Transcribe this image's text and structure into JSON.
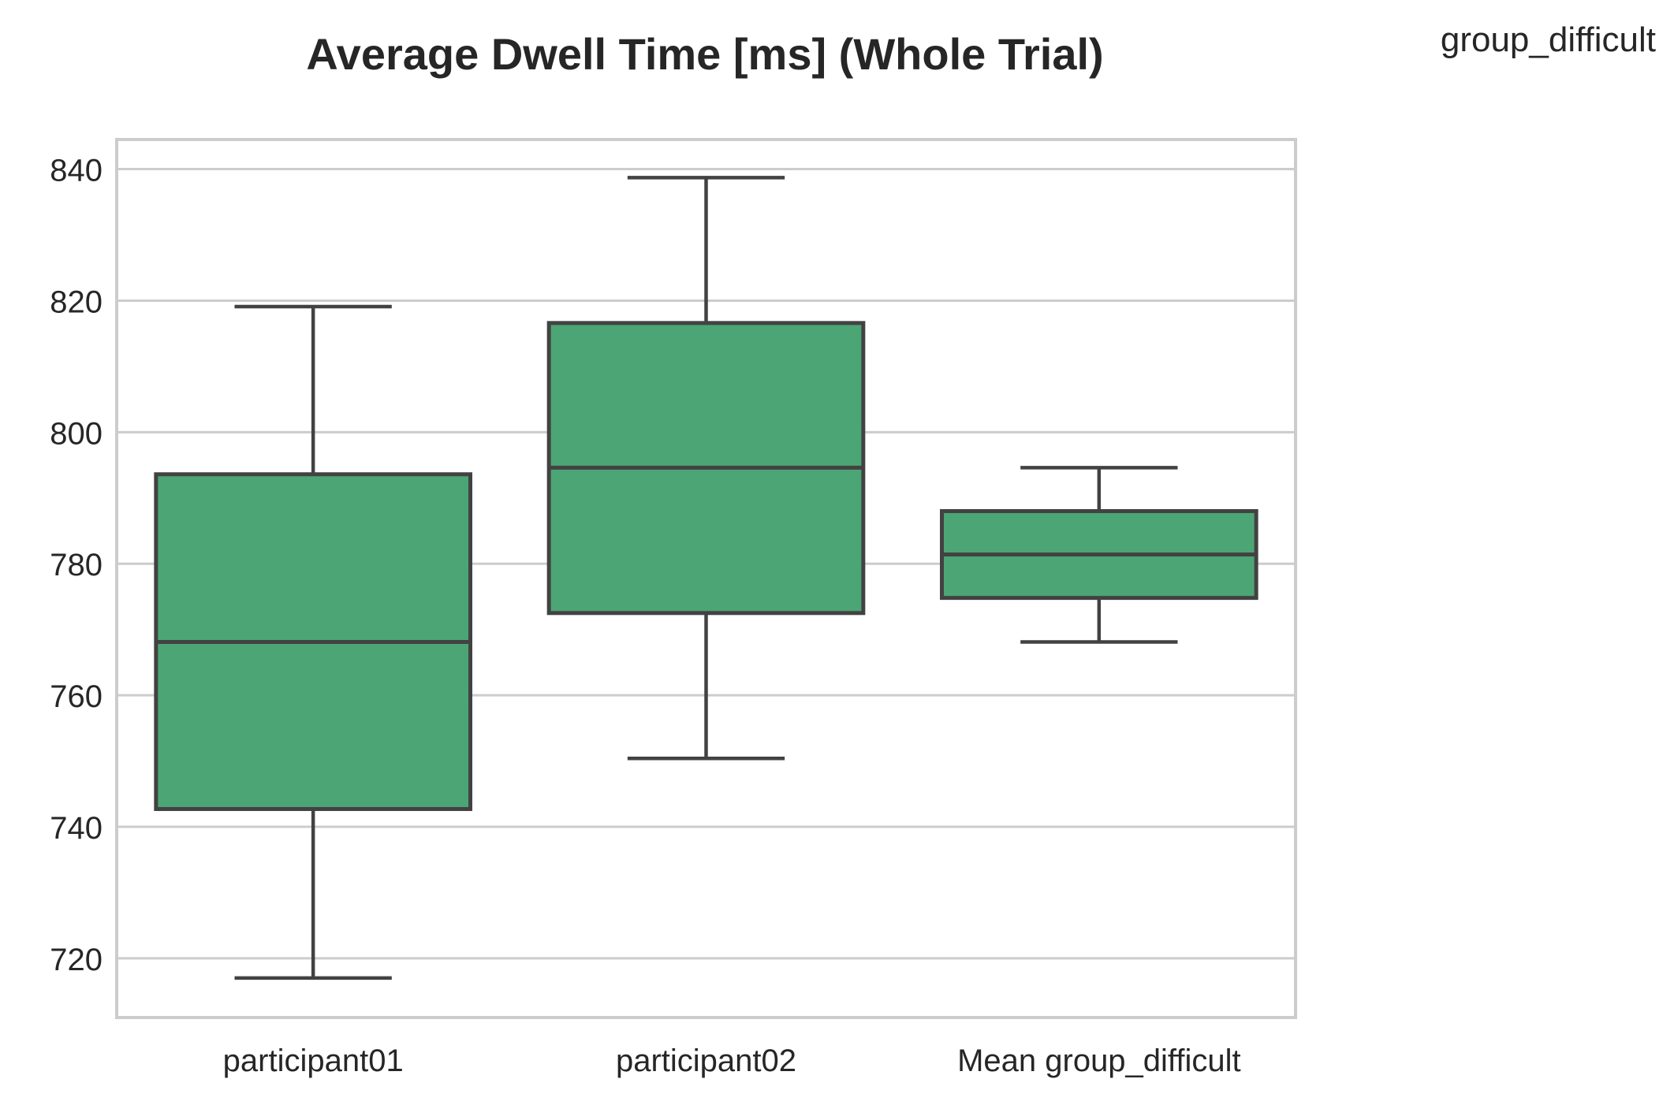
{
  "chart_data": {
    "type": "box",
    "title": "Average Dwell Time [ms] (Whole Trial)",
    "legend_title": "group_difficult",
    "xlabel": "",
    "ylabel": "",
    "categories": [
      "participant01",
      "participant02",
      "Mean group_difficult"
    ],
    "boxes": [
      {
        "category": "participant01",
        "whisker_low": 717.0,
        "q1": 742.7,
        "median": 768.1,
        "q3": 793.6,
        "whisker_high": 819.1
      },
      {
        "category": "participant02",
        "whisker_low": 750.4,
        "q1": 772.5,
        "median": 794.6,
        "q3": 816.6,
        "whisker_high": 838.7
      },
      {
        "category": "Mean group_difficult",
        "whisker_low": 768.1,
        "q1": 774.8,
        "median": 781.4,
        "q3": 788.0,
        "whisker_high": 794.6
      }
    ],
    "ylim": [
      711,
      844.5
    ],
    "yticks": [
      720,
      740,
      760,
      780,
      800,
      820,
      840
    ],
    "grid": true,
    "colors": {
      "box_fill": "#4ca574",
      "line": "#424242",
      "grid": "#cccccc",
      "frame": "#cccccc"
    }
  }
}
